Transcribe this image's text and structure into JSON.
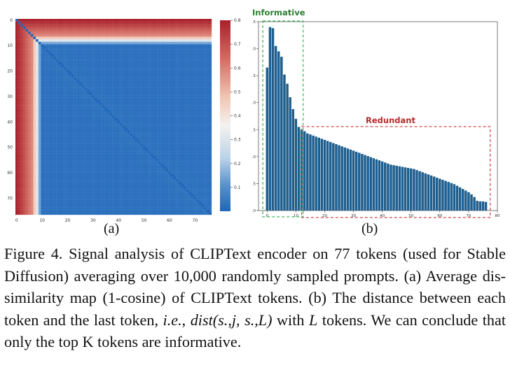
{
  "panels": {
    "a_label": "(a)",
    "b_label": "(b)"
  },
  "chart_data": [
    {
      "type": "heatmap",
      "title": "",
      "xlabel": "",
      "ylabel": "",
      "x_ticks": [
        "0",
        "10",
        "20",
        "30",
        "40",
        "50",
        "60",
        "70"
      ],
      "y_ticks": [
        "0",
        "10",
        "20",
        "30",
        "40",
        "50",
        "60",
        "70"
      ],
      "matrix_size": 77,
      "colorbar": {
        "ticks": [
          "0.8",
          "0.7",
          "0.6",
          "0.5",
          "0.4",
          "0.3",
          "0.2",
          "0.1"
        ],
        "range": [
          0.0,
          0.8
        ],
        "colormap": "RdBu_r",
        "low_color": "#1f66b9",
        "mid_color": "#f5f2f0",
        "high_color": "#a8212b"
      }
    },
    {
      "type": "bar",
      "title": "",
      "xlabel": "",
      "ylabel": "",
      "xlim": [
        -3,
        80
      ],
      "ylim": [
        0,
        3.5
      ],
      "x_ticks": [
        "0",
        "10",
        "20",
        "30",
        "40",
        "50",
        "60",
        "70",
        "80"
      ],
      "y_ticks": [
        "0.0",
        "0.5",
        "1.0",
        "1.5",
        "2.0",
        "2.5",
        "3.0",
        "3.5"
      ],
      "bar_color": "#1f5f8f",
      "x": [
        0,
        1,
        2,
        3,
        4,
        5,
        6,
        7,
        8,
        9,
        10,
        11,
        12,
        13,
        14,
        15,
        16,
        17,
        18,
        19,
        20,
        21,
        22,
        23,
        24,
        25,
        26,
        27,
        28,
        29,
        30,
        31,
        32,
        33,
        34,
        35,
        36,
        37,
        38,
        39,
        40,
        41,
        42,
        43,
        44,
        45,
        46,
        47,
        48,
        49,
        50,
        51,
        52,
        53,
        54,
        55,
        56,
        57,
        58,
        59,
        60,
        61,
        62,
        63,
        64,
        65,
        66,
        67,
        68,
        69,
        70,
        71,
        72,
        73,
        74,
        75,
        76
      ],
      "values": [
        2.65,
        3.4,
        3.38,
        3.05,
        2.95,
        2.85,
        2.52,
        2.35,
        2.1,
        1.88,
        1.7,
        1.55,
        1.5,
        1.47,
        1.43,
        1.41,
        1.39,
        1.37,
        1.35,
        1.33,
        1.31,
        1.29,
        1.27,
        1.25,
        1.23,
        1.21,
        1.19,
        1.17,
        1.15,
        1.13,
        1.11,
        1.09,
        1.07,
        1.05,
        1.03,
        1.01,
        0.99,
        0.97,
        0.95,
        0.93,
        0.91,
        0.89,
        0.87,
        0.85,
        0.84,
        0.83,
        0.82,
        0.81,
        0.8,
        0.79,
        0.78,
        0.77,
        0.75,
        0.73,
        0.71,
        0.69,
        0.67,
        0.65,
        0.63,
        0.61,
        0.59,
        0.57,
        0.55,
        0.53,
        0.51,
        0.49,
        0.46,
        0.43,
        0.4,
        0.37,
        0.34,
        0.3,
        0.25,
        0.18,
        0.17,
        0.17,
        0.16
      ],
      "annotations": [
        {
          "label": "Informative",
          "color": "#2e7d32",
          "box_color": "#3dbb5a",
          "x_range": [
            -1.5,
            12.5
          ]
        },
        {
          "label": "Redundant",
          "color": "#b52a2a",
          "box_color": "#d24a4a",
          "x_range": [
            12,
            77.5
          ]
        }
      ]
    }
  ],
  "caption": {
    "figure_label": "Figure 4.",
    "text_part1": " Signal analysis of CLIPText encoder on 77 tokens (used for Stable Diffusion) averaging over 10,000 randomly sampled prompts. (a) Average dis-similarity map (1-cosine) of CLIPText tokens. (b) The distance between each token and the last token, ",
    "ie": "i.e.",
    "text_part2": ", ",
    "formula": "dist(s.,j, s.,L)",
    "text_part3": " with ",
    "L": "L",
    "text_part4": " tokens. We can conclude that only the top K tokens are informative."
  }
}
